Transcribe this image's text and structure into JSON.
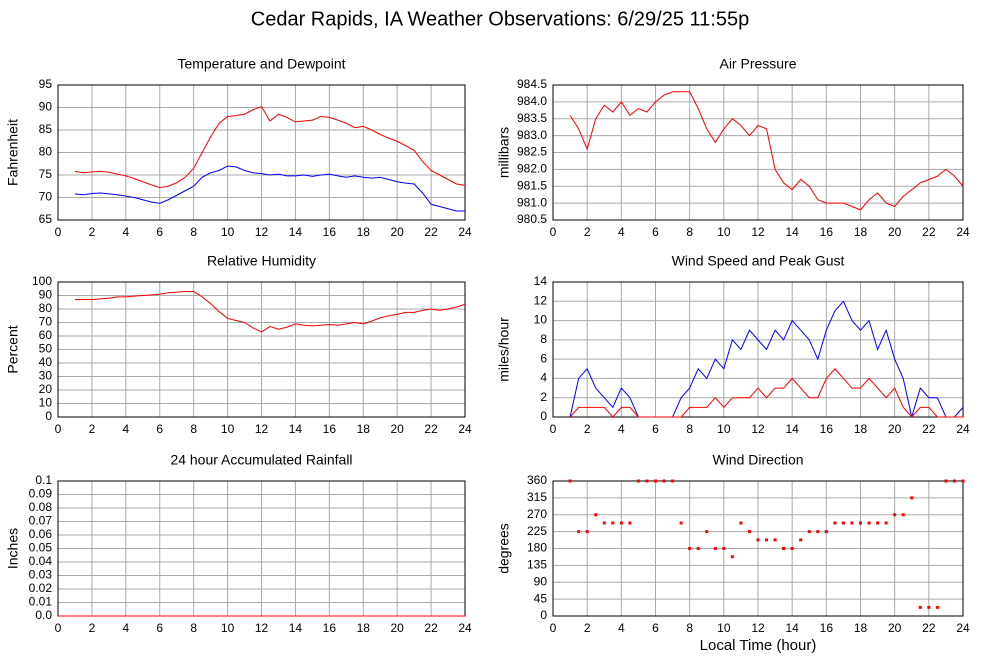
{
  "title": "Cedar Rapids, IA Weather Observations: 6/29/25 11:55p",
  "chart_data": [
    {
      "type": "line",
      "title": "Temperature and Dewpoint",
      "ylabel": "Fahrenheit",
      "grid": true,
      "xlim": [
        0,
        24
      ],
      "xticks": [
        0,
        2,
        4,
        6,
        8,
        10,
        12,
        14,
        16,
        18,
        20,
        22,
        24
      ],
      "ylim": [
        65,
        95
      ],
      "yticks": [
        65,
        70,
        75,
        80,
        85,
        90,
        95
      ],
      "x": [
        1,
        1.5,
        2,
        2.5,
        3,
        3.5,
        4,
        4.5,
        5,
        5.5,
        6,
        6.5,
        7,
        7.5,
        8,
        8.5,
        9,
        9.5,
        10,
        10.5,
        11,
        11.5,
        12,
        12.5,
        13,
        13.5,
        14,
        14.5,
        15,
        15.5,
        16,
        16.5,
        17,
        17.5,
        18,
        18.5,
        19,
        19.5,
        20,
        20.5,
        21,
        21.5,
        22,
        22.5,
        23,
        23.5,
        24
      ],
      "series": [
        {
          "color": "#ff0000",
          "values": [
            75.8,
            75.5,
            75.7,
            75.8,
            75.6,
            75.2,
            74.8,
            74.2,
            73.5,
            72.8,
            72.2,
            72.5,
            73.3,
            74.5,
            76.5,
            80,
            83.5,
            86.5,
            88,
            88.2,
            88.5,
            89.5,
            90.2,
            87,
            88.5,
            87.8,
            86.8,
            87,
            87.2,
            88,
            87.8,
            87.2,
            86.5,
            85.5,
            85.8,
            85,
            84,
            83.2,
            82.5,
            81.5,
            80.5,
            78,
            76,
            75,
            74,
            73,
            72.7
          ]
        },
        {
          "color": "#0000ff",
          "values": [
            70.8,
            70.6,
            70.9,
            71,
            70.8,
            70.6,
            70.3,
            70,
            69.5,
            69,
            68.7,
            69.5,
            70.5,
            71.5,
            72.5,
            74.5,
            75.5,
            76,
            77,
            76.8,
            76,
            75.5,
            75.3,
            75,
            75.2,
            74.8,
            74.8,
            75,
            74.7,
            75,
            75.2,
            74.8,
            74.5,
            74.8,
            74.5,
            74.3,
            74.5,
            74,
            73.5,
            73.2,
            73,
            71,
            68.5,
            68,
            67.5,
            67,
            67
          ]
        }
      ]
    },
    {
      "type": "line",
      "title": "Air Pressure",
      "ylabel": "millibars",
      "grid": true,
      "xlim": [
        0,
        24
      ],
      "xticks": [
        0,
        2,
        4,
        6,
        8,
        10,
        12,
        14,
        16,
        18,
        20,
        22,
        24
      ],
      "ylim": [
        980.5,
        984.5
      ],
      "yticks": [
        980.5,
        {
          "value": 981,
          "label": "981.0"
        },
        981.5,
        {
          "value": 982,
          "label": "982.0"
        },
        982.5,
        {
          "value": 983,
          "label": "983.0"
        },
        983.5,
        {
          "value": 984,
          "label": "984.0"
        },
        984.5
      ],
      "x": [
        1,
        1.5,
        2,
        2.5,
        3,
        3.5,
        4,
        4.5,
        5,
        5.5,
        6,
        6.5,
        7,
        7.5,
        8,
        8.5,
        9,
        9.5,
        10,
        10.5,
        11,
        11.5,
        12,
        12.5,
        13,
        13.5,
        14,
        14.5,
        15,
        15.5,
        16,
        16.5,
        17,
        17.5,
        18,
        18.5,
        19,
        19.5,
        20,
        20.5,
        21,
        21.5,
        22,
        22.5,
        23,
        23.5,
        24
      ],
      "series": [
        {
          "color": "#ff0000",
          "values": [
            983.6,
            983.2,
            982.6,
            983.5,
            983.9,
            983.7,
            984,
            983.6,
            983.8,
            983.7,
            984,
            984.2,
            984.3,
            984.3,
            984.3,
            983.8,
            983.2,
            982.8,
            983.2,
            983.5,
            983.3,
            983,
            983.3,
            983.2,
            982,
            981.6,
            981.4,
            981.7,
            981.5,
            981.1,
            981,
            981,
            981,
            980.9,
            980.8,
            981.1,
            981.3,
            981,
            980.9,
            981.2,
            981.4,
            981.6,
            981.7,
            981.8,
            982,
            981.8,
            981.5
          ]
        }
      ]
    },
    {
      "type": "line",
      "title": "Relative Humidity",
      "ylabel": "Percent",
      "grid": true,
      "xlim": [
        0,
        24
      ],
      "xticks": [
        0,
        2,
        4,
        6,
        8,
        10,
        12,
        14,
        16,
        18,
        20,
        22,
        24
      ],
      "ylim": [
        0,
        100
      ],
      "yticks": [
        0,
        10,
        20,
        30,
        40,
        50,
        60,
        70,
        80,
        90,
        100
      ],
      "x": [
        1,
        1.5,
        2,
        2.5,
        3,
        3.5,
        4,
        4.5,
        5,
        5.5,
        6,
        6.5,
        7,
        7.5,
        8,
        8.5,
        9,
        9.5,
        10,
        10.5,
        11,
        11.5,
        12,
        12.5,
        13,
        13.5,
        14,
        14.5,
        15,
        15.5,
        16,
        16.5,
        17,
        17.5,
        18,
        18.5,
        19,
        19.5,
        20,
        20.5,
        21,
        21.5,
        22,
        22.5,
        23,
        23.5,
        24
      ],
      "series": [
        {
          "color": "#ff0000",
          "values": [
            87,
            87,
            87,
            87.5,
            88,
            89,
            89,
            89.5,
            90,
            90.5,
            91,
            92,
            92.5,
            93,
            93,
            89,
            84,
            78,
            73,
            71.5,
            70,
            66,
            63,
            67,
            65,
            66.5,
            69,
            68,
            67.5,
            68,
            68.5,
            68,
            69,
            70,
            69,
            71,
            73.5,
            75,
            76,
            77.5,
            77.5,
            79,
            80,
            79,
            80,
            81.5,
            83.5
          ]
        }
      ]
    },
    {
      "type": "line",
      "title": "Wind Speed and Peak Gust",
      "ylabel": "miles/hour",
      "grid": true,
      "xlim": [
        0,
        24
      ],
      "xticks": [
        0,
        2,
        4,
        6,
        8,
        10,
        12,
        14,
        16,
        18,
        20,
        22,
        24
      ],
      "ylim": [
        0,
        14
      ],
      "yticks": [
        0,
        2,
        4,
        6,
        8,
        10,
        12,
        14
      ],
      "x": [
        1,
        1.5,
        2,
        2.5,
        3,
        3.5,
        4,
        4.5,
        5,
        5.5,
        6,
        6.5,
        7,
        7.5,
        8,
        8.5,
        9,
        9.5,
        10,
        10.5,
        11,
        11.5,
        12,
        12.5,
        13,
        13.5,
        14,
        14.5,
        15,
        15.5,
        16,
        16.5,
        17,
        17.5,
        18,
        18.5,
        19,
        19.5,
        20,
        20.5,
        21,
        21.5,
        22,
        22.5,
        23,
        23.5,
        24
      ],
      "series": [
        {
          "color": "#0000ff",
          "values": [
            0,
            4,
            5,
            3,
            2,
            1,
            3,
            2,
            0,
            0,
            0,
            0,
            0,
            2,
            3,
            5,
            4,
            6,
            5,
            8,
            7,
            9,
            8,
            7,
            9,
            8,
            10,
            9,
            8,
            6,
            9,
            11,
            12,
            10,
            9,
            10,
            7,
            9,
            6,
            4,
            0,
            3,
            2,
            2,
            0,
            0,
            1
          ]
        },
        {
          "color": "#ff0000",
          "values": [
            0,
            1,
            1,
            1,
            1,
            0,
            1,
            1,
            0,
            0,
            0,
            0,
            0,
            0,
            1,
            1,
            1,
            2,
            1,
            2,
            2,
            2,
            3,
            2,
            3,
            3,
            4,
            3,
            2,
            2,
            4,
            5,
            4,
            3,
            3,
            4,
            3,
            2,
            3,
            1,
            0,
            1,
            1,
            0,
            0,
            0,
            0
          ]
        }
      ]
    },
    {
      "type": "line",
      "title": "24 hour Accumulated Rainfall",
      "ylabel": "Inches",
      "grid": true,
      "xlim": [
        0,
        24
      ],
      "xticks": [
        0,
        2,
        4,
        6,
        8,
        10,
        12,
        14,
        16,
        18,
        20,
        22,
        24
      ],
      "ylim": [
        0,
        0.1
      ],
      "yticks": [
        {
          "value": 0,
          "label": "0.0"
        },
        0.01,
        0.02,
        0.03,
        0.04,
        0.05,
        0.06,
        0.07,
        0.08,
        0.09,
        0.1
      ],
      "x": [
        0,
        24
      ],
      "series": [
        {
          "color": "#ff0000",
          "values": [
            0,
            0
          ]
        }
      ]
    },
    {
      "type": "scatter",
      "title": "Wind Direction",
      "ylabel": "degrees",
      "xlabel": "Local Time (hour)",
      "grid": true,
      "xlim": [
        0,
        24
      ],
      "xticks": [
        0,
        2,
        4,
        6,
        8,
        10,
        12,
        14,
        16,
        18,
        20,
        22,
        24
      ],
      "ylim": [
        0,
        360
      ],
      "yticks": [
        0,
        45,
        90,
        135,
        180,
        225,
        270,
        315,
        360
      ],
      "x": [
        1,
        1.5,
        2,
        2.5,
        3,
        3.5,
        4,
        4.5,
        5,
        5.5,
        6,
        6.5,
        7,
        7.5,
        8,
        8.5,
        9,
        9.5,
        10,
        10.5,
        11,
        11.5,
        12,
        12.5,
        13,
        13.5,
        14,
        14.5,
        15,
        15.5,
        16,
        16.5,
        17,
        17.5,
        18,
        18.5,
        19,
        19.5,
        20,
        20.5,
        21,
        21.5,
        22,
        22.5,
        23,
        23.5,
        24
      ],
      "series": [
        {
          "color": "#ff0000",
          "values": [
            360,
            225,
            225,
            270,
            248,
            248,
            248,
            248,
            360,
            360,
            360,
            360,
            360,
            248,
            180,
            180,
            225,
            180,
            180,
            158,
            248,
            225,
            203,
            203,
            203,
            180,
            180,
            203,
            225,
            225,
            225,
            248,
            248,
            248,
            248,
            248,
            248,
            248,
            270,
            270,
            315,
            23,
            23,
            23,
            360,
            360,
            360
          ]
        }
      ]
    }
  ]
}
